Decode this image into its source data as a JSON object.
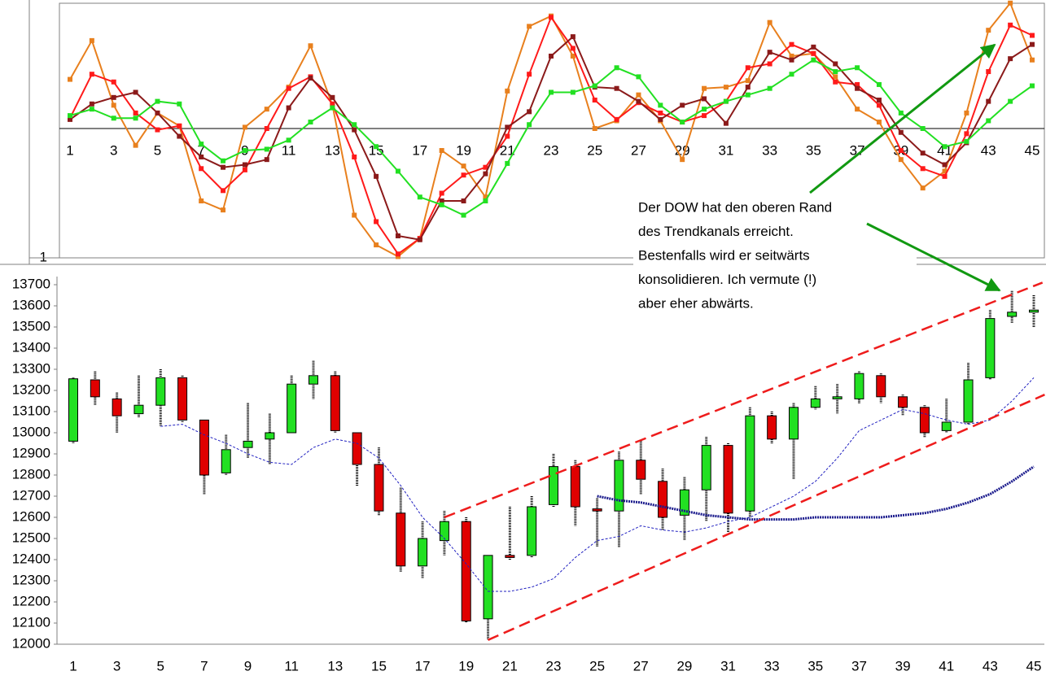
{
  "chart_data": [
    {
      "type": "line",
      "categories": [
        "1",
        null,
        "3",
        null,
        "5",
        null,
        "7",
        null,
        "9",
        null,
        "11",
        null,
        "13",
        null,
        "15",
        null,
        "17",
        null,
        "19",
        null,
        "21",
        null,
        "23",
        null,
        "25",
        null,
        "27",
        null,
        "29",
        null,
        "31",
        null,
        "33",
        null,
        "35",
        null,
        "37",
        null,
        "39",
        null,
        "41",
        null,
        "43",
        null,
        "45"
      ],
      "ylim": [
        -1,
        1
      ],
      "yticks": [
        {
          "value": -1,
          "label": "1"
        }
      ],
      "series": [
        {
          "color": "#e8801e",
          "values": [
            0.38,
            0.68,
            0.18,
            -0.13,
            0.12,
            0.02,
            -0.56,
            -0.63,
            0.01,
            0.15,
            0.32,
            0.64,
            0.18,
            -0.67,
            -0.9,
            -0.99,
            -0.85,
            -0.17,
            -0.29,
            -0.53,
            0.29,
            0.79,
            0.87,
            0.56,
            0.0,
            0.06,
            0.26,
            0.06,
            -0.24,
            0.31,
            0.32,
            0.37,
            0.82,
            0.56,
            0.58,
            0.4,
            0.15,
            0.05,
            -0.24,
            -0.46,
            -0.33,
            0.12,
            0.76,
            0.97,
            0.53
          ]
        },
        {
          "color": "#ff1a1a",
          "values": [
            0.08,
            0.42,
            0.36,
            0.12,
            -0.01,
            0.02,
            -0.31,
            -0.48,
            -0.32,
            0.0,
            0.31,
            0.4,
            0.19,
            -0.22,
            -0.72,
            -0.97,
            -0.85,
            -0.5,
            -0.36,
            -0.3,
            -0.06,
            0.42,
            0.86,
            0.62,
            0.22,
            0.07,
            0.2,
            0.12,
            0.05,
            0.1,
            0.21,
            0.47,
            0.5,
            0.65,
            0.58,
            0.36,
            0.34,
            0.18,
            -0.17,
            -0.31,
            -0.37,
            -0.04,
            0.44,
            0.8,
            0.72
          ]
        },
        {
          "color": "#8b1a1a",
          "values": [
            0.07,
            0.19,
            0.24,
            0.28,
            0.12,
            -0.06,
            -0.22,
            -0.3,
            -0.28,
            -0.24,
            0.16,
            0.39,
            0.24,
            -0.01,
            -0.37,
            -0.83,
            -0.86,
            -0.56,
            -0.56,
            -0.35,
            0.01,
            0.13,
            0.56,
            0.71,
            0.32,
            0.31,
            0.21,
            0.07,
            0.18,
            0.23,
            0.04,
            0.32,
            0.59,
            0.53,
            0.63,
            0.5,
            0.31,
            0.22,
            -0.03,
            -0.19,
            -0.28,
            -0.11,
            0.21,
            0.54,
            0.65
          ]
        },
        {
          "color": "#22e022",
          "values": [
            0.1,
            0.15,
            0.08,
            0.08,
            0.21,
            0.19,
            -0.12,
            -0.25,
            -0.17,
            -0.16,
            -0.09,
            0.05,
            0.16,
            0.03,
            -0.14,
            -0.33,
            -0.53,
            -0.59,
            -0.67,
            -0.56,
            -0.27,
            0.03,
            0.28,
            0.28,
            0.33,
            0.47,
            0.4,
            0.18,
            0.05,
            0.15,
            0.21,
            0.26,
            0.31,
            0.42,
            0.53,
            0.44,
            0.47,
            0.34,
            0.12,
            0.0,
            -0.14,
            -0.1,
            0.06,
            0.21,
            0.33
          ]
        }
      ]
    },
    {
      "type": "candlestick",
      "categories": [
        "1",
        null,
        "3",
        null,
        "5",
        null,
        "7",
        null,
        "9",
        null,
        "11",
        null,
        "13",
        null,
        "15",
        null,
        "17",
        null,
        "19",
        null,
        "21",
        null,
        "23",
        null,
        "25",
        null,
        "27",
        null,
        "29",
        null,
        "31",
        null,
        "33",
        null,
        "35",
        null,
        "37",
        null,
        "39",
        null,
        "41",
        null,
        "43",
        null,
        "45"
      ],
      "ylim": [
        12000,
        13700
      ],
      "yticks": [
        12000,
        12100,
        12200,
        12300,
        12400,
        12500,
        12600,
        12700,
        12800,
        12900,
        13000,
        13100,
        13200,
        13300,
        13400,
        13500,
        13600,
        13700
      ],
      "up_color": "#22e022",
      "down_color": "#e00000",
      "open": [
        12960,
        13250,
        13160,
        13090,
        13130,
        13260,
        13060,
        12810,
        12930,
        12970,
        13000,
        13230,
        13270,
        13000,
        12850,
        12620,
        12370,
        12490,
        12580,
        12120,
        12420,
        12420,
        12660,
        12840,
        12640,
        12630,
        12870,
        12770,
        12610,
        12730,
        12940,
        12630,
        13080,
        12970,
        13120,
        13160,
        13160,
        13270,
        13170,
        13120,
        13010,
        13050,
        13260,
        13550,
        13570
      ],
      "high": [
        13260,
        13290,
        13190,
        13270,
        13300,
        13270,
        13060,
        12990,
        13140,
        13090,
        13270,
        13340,
        13290,
        13000,
        12930,
        12740,
        12580,
        12630,
        12600,
        12420,
        12650,
        12700,
        12900,
        12870,
        12690,
        12910,
        12960,
        12830,
        12790,
        12980,
        12950,
        13120,
        13100,
        13140,
        13220,
        13230,
        13290,
        13280,
        13180,
        13130,
        13160,
        13330,
        13580,
        13670,
        13650
      ],
      "low": [
        12950,
        13130,
        13000,
        13070,
        13030,
        13050,
        12710,
        12800,
        12880,
        12850,
        13000,
        13160,
        13000,
        12750,
        12610,
        12340,
        12310,
        12420,
        12100,
        12020,
        12400,
        12410,
        12650,
        12560,
        12460,
        12460,
        12710,
        12540,
        12490,
        12580,
        12530,
        12600,
        12950,
        12780,
        13110,
        13090,
        13140,
        13140,
        13080,
        12980,
        13000,
        13040,
        13250,
        13520,
        13500
      ],
      "close": [
        13255,
        13170,
        13080,
        13130,
        13260,
        13060,
        12800,
        12920,
        12960,
        13000,
        13230,
        13270,
        13010,
        12850,
        12630,
        12370,
        12500,
        12580,
        12110,
        12420,
        12410,
        12650,
        12840,
        12650,
        12630,
        12870,
        12780,
        12600,
        12730,
        12940,
        12620,
        13080,
        12970,
        13120,
        13160,
        13170,
        13280,
        13170,
        13120,
        13000,
        13050,
        13250,
        13540,
        13570,
        13580
      ],
      "series": [
        {
          "color": "#2020c0",
          "values": [
            null,
            null,
            null,
            null,
            13030,
            13040,
            12990,
            12950,
            12900,
            12860,
            12850,
            12930,
            12970,
            12950,
            12880,
            12750,
            12600,
            12500,
            12380,
            12250,
            12250,
            12270,
            12310,
            12410,
            12490,
            12510,
            12560,
            12540,
            12530,
            12550,
            12580,
            12600,
            12650,
            12700,
            12770,
            12880,
            13010,
            13060,
            13110,
            13090,
            13060,
            13040,
            13060,
            13150,
            13260
          ]
        },
        {
          "color": "#1a1a8c",
          "values": [
            null,
            null,
            null,
            null,
            null,
            null,
            null,
            null,
            null,
            null,
            null,
            null,
            null,
            null,
            null,
            null,
            null,
            null,
            null,
            null,
            null,
            null,
            null,
            null,
            12700,
            12680,
            12670,
            12650,
            12630,
            12610,
            12600,
            12590,
            12590,
            12590,
            12600,
            12600,
            12600,
            12600,
            12610,
            12620,
            12640,
            12670,
            12710,
            12770,
            12840
          ]
        }
      ],
      "trendlines": [
        {
          "color": "#ee1c1c",
          "x": [
            18,
            45.4
          ],
          "values": [
            12600,
            13710
          ]
        },
        {
          "color": "#ee1c1c",
          "x": [
            20,
            45.5
          ],
          "values": [
            12020,
            13180
          ]
        }
      ],
      "annotation": [
        "Der DOW hat den oberen Rand",
        "des Trendkanals erreicht.",
        "Bestenfalls wird er seitwärts",
        "konsolidieren. Ich vermute (!)",
        "aber eher abwärts."
      ]
    }
  ]
}
